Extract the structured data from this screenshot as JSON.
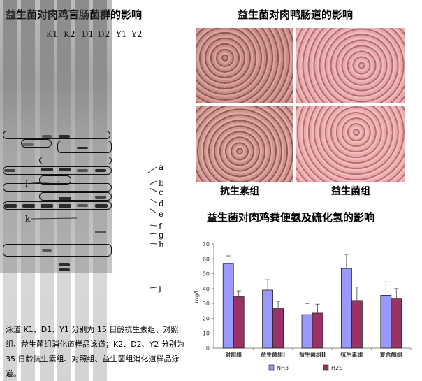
{
  "left_panel": {
    "title": "益生菌对肉鸡盲肠菌群的影响",
    "lanes": [
      "K1",
      "K2",
      "D1",
      "D2",
      "Y1",
      "Y2"
    ],
    "band_labels_right": [
      "a",
      "b",
      "c",
      "d",
      "e",
      "f",
      "g",
      "h",
      "j"
    ],
    "band_labels_left": [
      "i",
      "k"
    ],
    "caption": "泳道 K1、D1、Y1 分别为 15 日龄抗生素组、对照组、益生菌组消化道样品泳道；K2、D2、Y2 分别为 35 日龄抗生素组、对照组、益生菌组消化道样品泳道。"
  },
  "right_top": {
    "title": "益生菌对肉鸭肠道的影响",
    "label_left": "抗生素组",
    "label_right": "益生菌组"
  },
  "right_bottom": {
    "title": "益生菌对肉鸡粪便氨及硫化氢的影响"
  },
  "chart_data": {
    "type": "bar",
    "categories": [
      "对照组",
      "益生菌组I",
      "益生菌组II",
      "抗生素组",
      "复合酶组"
    ],
    "series": [
      {
        "name": "NH3",
        "values": [
          57,
          39,
          22.5,
          53.5,
          35.5
        ],
        "errors": [
          5,
          7,
          7.5,
          9.5,
          9
        ],
        "color": "#9999ff"
      },
      {
        "name": "H2S",
        "values": [
          34.5,
          26.5,
          23.5,
          32,
          33.5
        ],
        "errors": [
          4,
          5,
          6,
          9,
          6.5
        ],
        "color": "#993366"
      }
    ],
    "ylabel": "mg/L",
    "ylim": [
      0,
      70
    ],
    "yticks": [
      0,
      10,
      20,
      30,
      40,
      50,
      60,
      70
    ],
    "legend_position": "bottom"
  }
}
